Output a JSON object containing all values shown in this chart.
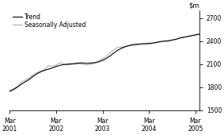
{
  "title": "",
  "ylim": [
    1500,
    2800
  ],
  "yticks": [
    1500,
    1800,
    2100,
    2400,
    2700
  ],
  "xlim_start": 0,
  "xlim_end": 49,
  "trend_color": "#000000",
  "seasonally_adjusted_color": "#b0b0b0",
  "trend_linewidth": 0.8,
  "sa_linewidth": 0.8,
  "legend_labels": [
    "Trend",
    "Seasonally Adjusted"
  ],
  "xtick_labels": [
    "Mar\n2001",
    "Mar\n2002",
    "Mar\n2003",
    "Mar\n2004",
    "Mar\n2005"
  ],
  "xtick_positions": [
    0,
    12,
    24,
    36,
    48
  ],
  "background_color": "#ffffff",
  "trend_data": [
    1750,
    1775,
    1805,
    1840,
    1870,
    1900,
    1940,
    1975,
    2000,
    2020,
    2035,
    2050,
    2070,
    2085,
    2095,
    2100,
    2105,
    2110,
    2115,
    2115,
    2110,
    2115,
    2120,
    2130,
    2150,
    2175,
    2210,
    2250,
    2285,
    2310,
    2330,
    2345,
    2355,
    2360,
    2365,
    2368,
    2370,
    2375,
    2385,
    2395,
    2400,
    2405,
    2415,
    2425,
    2440,
    2450,
    2460,
    2470,
    2480,
    2490
  ],
  "sa_data": [
    1740,
    1760,
    1800,
    1870,
    1890,
    1920,
    1960,
    1990,
    2010,
    2030,
    2080,
    2070,
    2090,
    2120,
    2100,
    2090,
    2095,
    2100,
    2105,
    2095,
    2090,
    2100,
    2110,
    2145,
    2170,
    2200,
    2250,
    2290,
    2320,
    2325,
    2330,
    2340,
    2345,
    2350,
    2360,
    2355,
    2360,
    2370,
    2380,
    2390,
    2400,
    2395,
    2410,
    2420,
    2445,
    2455,
    2460,
    2475,
    2485,
    2500
  ]
}
